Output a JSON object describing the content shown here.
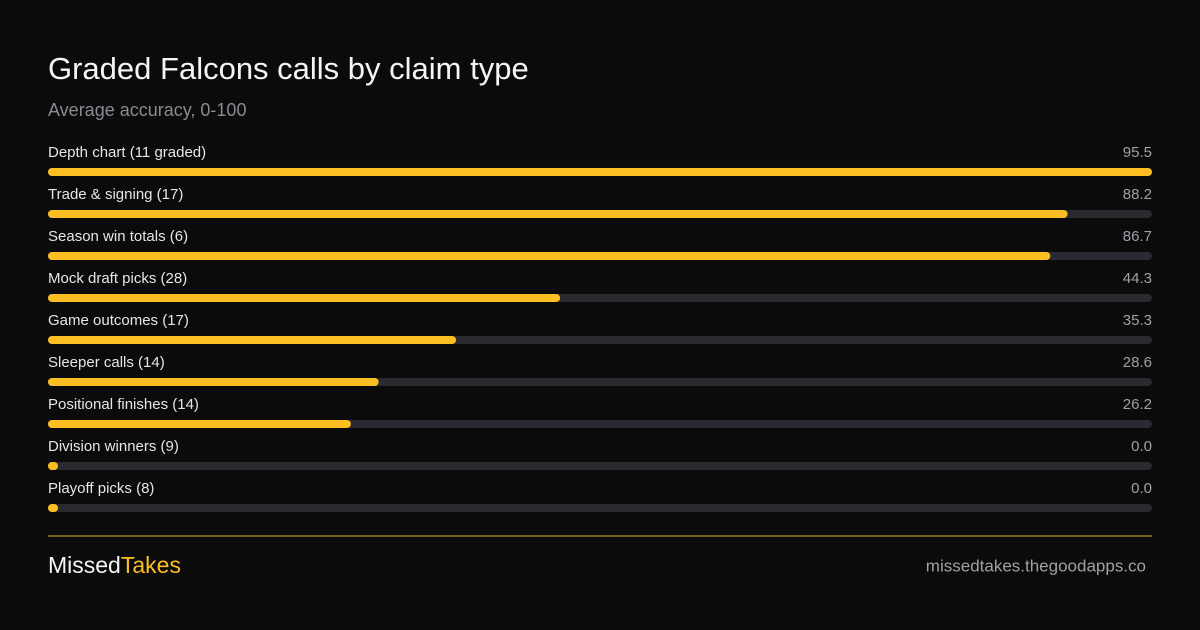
{
  "chart_data": {
    "type": "bar",
    "orientation": "horizontal",
    "title": "Graded Falcons calls by claim type",
    "subtitle": "Average accuracy, 0-100",
    "categories": [
      "Depth chart (11 graded)",
      "Trade & signing (17)",
      "Season win totals (6)",
      "Mock draft picks (28)",
      "Game outcomes (17)",
      "Sleeper calls (14)",
      "Positional finishes (14)",
      "Division winners (9)",
      "Playoff picks (8)"
    ],
    "values": [
      95.5,
      88.2,
      86.7,
      44.3,
      35.3,
      28.6,
      26.2,
      0,
      0
    ],
    "value_labels": [
      "95.5",
      "88.2",
      "86.7",
      "44.3",
      "35.3",
      "28.6",
      "26.2",
      "0.0",
      "0.0"
    ],
    "color": "#fbbf24",
    "xlim": [
      0,
      95.5
    ]
  },
  "footer": {
    "brand": [
      "Missed",
      "Takes"
    ],
    "url": "missedtakes.thegoodapps.co"
  }
}
